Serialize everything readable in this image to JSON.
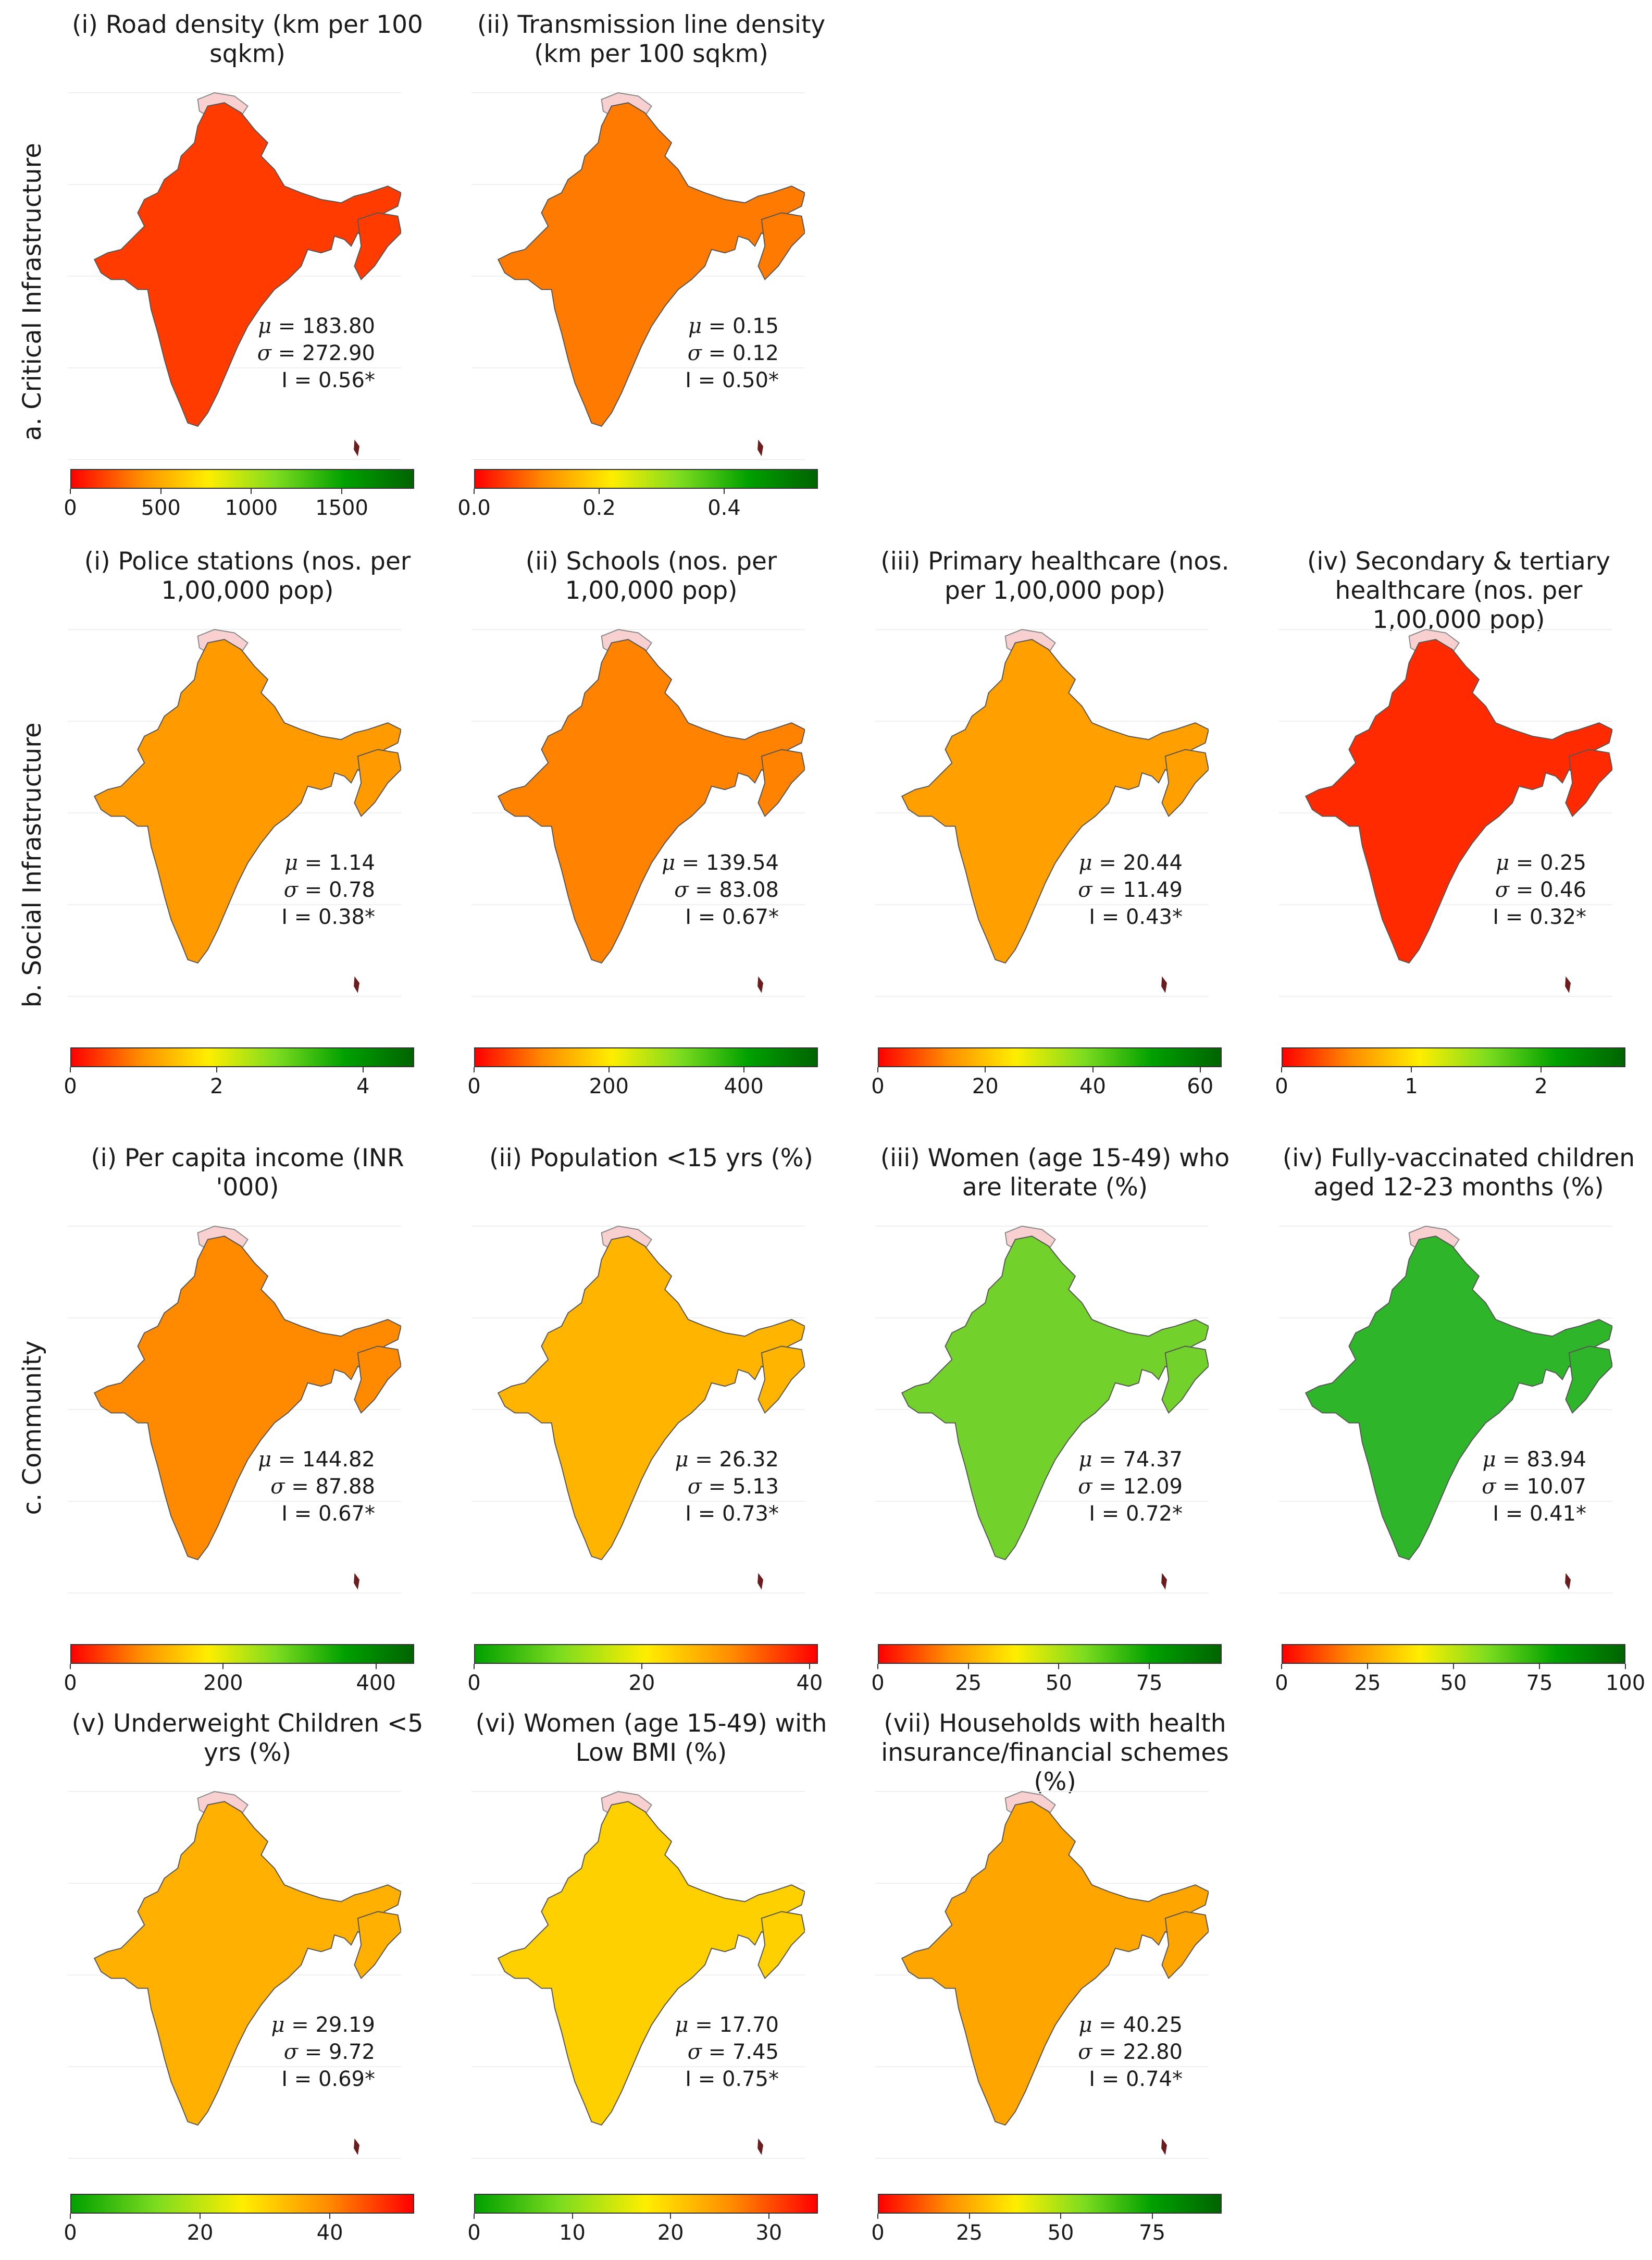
{
  "rows": [
    {
      "label": "a. Critical Infrastructure"
    },
    {
      "label": "b. Social Infrastructure"
    },
    {
      "label": "c. Community"
    }
  ],
  "colors": {
    "red_to_green": [
      "#ff0000",
      "#ff8c00",
      "#ffee00",
      "#7ddc1f",
      "#00a000",
      "#006400"
    ],
    "green_to_red": [
      "#00a000",
      "#7ddc1f",
      "#ffee00",
      "#ff8c00",
      "#ff0000"
    ],
    "disputed_territory": "#f9d0d0",
    "border": "#888888"
  },
  "panels": [
    {
      "title": "(i) Road density (km per 100 sqkm)",
      "mu": "183.80",
      "sigma": "272.90",
      "i": "0.56*",
      "ticks": [
        "0",
        "500",
        "1000",
        "1500"
      ],
      "tick_values": [
        0,
        500,
        1000,
        1500
      ],
      "range": [
        0,
        1900
      ],
      "scale": "red_to_green",
      "fill": "#ff3b00"
    },
    {
      "title": "(ii) Transmission line density (km per 100 sqkm)",
      "mu": "0.15",
      "sigma": "0.12",
      "i": "0.50*",
      "ticks": [
        "0.0",
        "0.2",
        "0.4"
      ],
      "tick_values": [
        0,
        0.2,
        0.4
      ],
      "range": [
        0,
        0.55
      ],
      "scale": "red_to_green",
      "fill": "#ff7a00"
    },
    {
      "title": "(i) Police stations (nos. per 1,00,000 pop)",
      "mu": "1.14",
      "sigma": "0.78",
      "i": "0.38*",
      "ticks": [
        "0",
        "2",
        "4"
      ],
      "tick_values": [
        0,
        2,
        4
      ],
      "range": [
        0,
        4.7
      ],
      "scale": "red_to_green",
      "fill": "#ff9a00"
    },
    {
      "title": "(ii) Schools (nos. per 1,00,000 pop)",
      "mu": "139.54",
      "sigma": "83.08",
      "i": "0.67*",
      "ticks": [
        "0",
        "200",
        "400"
      ],
      "tick_values": [
        0,
        200,
        400
      ],
      "range": [
        0,
        510
      ],
      "scale": "red_to_green",
      "fill": "#ff8200"
    },
    {
      "title": "(iii) Primary healthcare (nos. per 1,00,000 pop)",
      "mu": "20.44",
      "sigma": "11.49",
      "i": "0.43*",
      "ticks": [
        "0",
        "20",
        "40",
        "60"
      ],
      "tick_values": [
        0,
        20,
        40,
        60
      ],
      "range": [
        0,
        64
      ],
      "scale": "red_to_green",
      "fill": "#ffa000"
    },
    {
      "title": "(iv) Secondary & tertiary healthcare (nos. per 1,00,000 pop)",
      "mu": "0.25",
      "sigma": "0.46",
      "i": "0.32*",
      "ticks": [
        "0",
        "1",
        "2"
      ],
      "tick_values": [
        0,
        1,
        2
      ],
      "range": [
        0,
        2.65
      ],
      "scale": "red_to_green",
      "fill": "#ff2a00"
    },
    {
      "title": "(i) Per capita income (INR '000)",
      "mu": "144.82",
      "sigma": "87.88",
      "i": "0.67*",
      "ticks": [
        "0",
        "200",
        "400"
      ],
      "tick_values": [
        0,
        200,
        400
      ],
      "range": [
        0,
        450
      ],
      "scale": "red_to_green",
      "fill": "#ff8a00"
    },
    {
      "title": "(ii) Population <15 yrs (%)",
      "mu": "26.32",
      "sigma": "5.13",
      "i": "0.73*",
      "ticks": [
        "0",
        "20",
        "40"
      ],
      "tick_values": [
        0,
        20,
        40
      ],
      "range": [
        0,
        41
      ],
      "scale": "green_to_red",
      "fill": "#ffb400"
    },
    {
      "title": "(iii) Women (age 15-49) who are literate (%)",
      "mu": "74.37",
      "sigma": "12.09",
      "i": "0.72*",
      "ticks": [
        "0",
        "25",
        "50",
        "75"
      ],
      "tick_values": [
        0,
        25,
        50,
        75
      ],
      "range": [
        0,
        95
      ],
      "scale": "red_to_green",
      "fill": "#72d12a"
    },
    {
      "title": "(iv) Fully-vaccinated children aged 12-23 months (%)",
      "mu": "83.94",
      "sigma": "10.07",
      "i": "0.41*",
      "ticks": [
        "0",
        "25",
        "50",
        "75",
        "100"
      ],
      "tick_values": [
        0,
        25,
        50,
        75,
        100
      ],
      "range": [
        0,
        100
      ],
      "scale": "red_to_green",
      "fill": "#2fb52a"
    },
    {
      "title": "(v) Underweight Children <5 yrs (%)",
      "mu": "29.19",
      "sigma": "9.72",
      "i": "0.69*",
      "ticks": [
        "0",
        "20",
        "40"
      ],
      "tick_values": [
        0,
        20,
        40
      ],
      "range": [
        0,
        53
      ],
      "scale": "green_to_red",
      "fill": "#ffb000"
    },
    {
      "title": "(vi) Women (age 15-49) with Low BMI (%)",
      "mu": "17.70",
      "sigma": "7.45",
      "i": "0.75*",
      "ticks": [
        "0",
        "10",
        "20",
        "30"
      ],
      "tick_values": [
        0,
        10,
        20,
        30
      ],
      "range": [
        0,
        35
      ],
      "scale": "green_to_red",
      "fill": "#ffd000"
    },
    {
      "title": "(vii) Households with health insurance/financial schemes (%)",
      "mu": "40.25",
      "sigma": "22.80",
      "i": "0.74*",
      "ticks": [
        "0",
        "25",
        "50",
        "75"
      ],
      "tick_values": [
        0,
        25,
        50,
        75
      ],
      "range": [
        0,
        94
      ],
      "scale": "red_to_green",
      "fill": "#ffa500"
    }
  ]
}
